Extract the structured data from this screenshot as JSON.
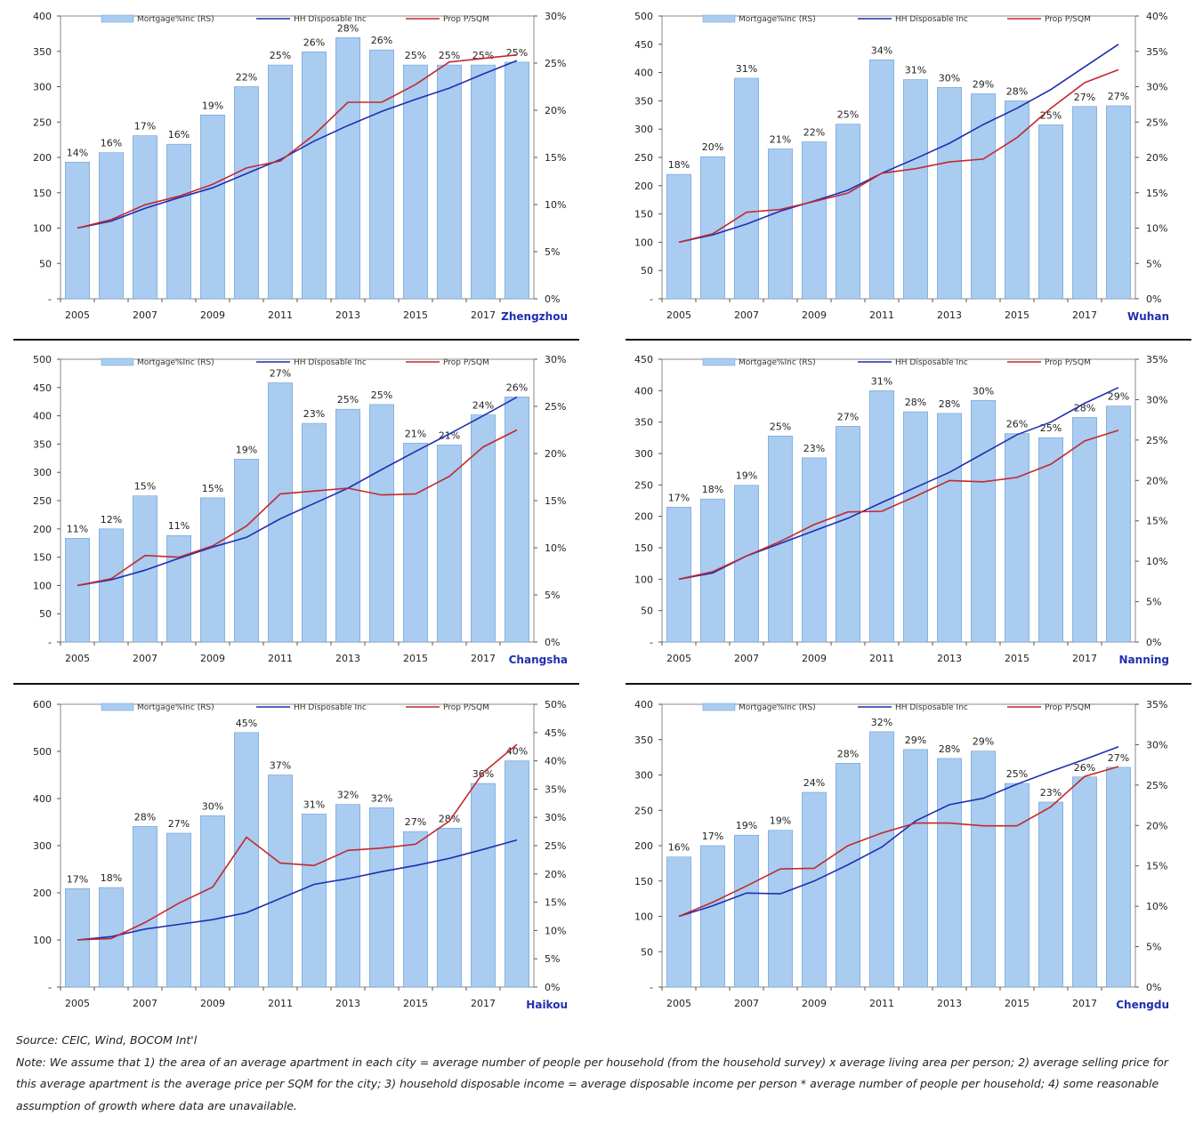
{
  "colors": {
    "bar": "#a9ccf0",
    "bar_edge": "#6f9fd6",
    "hh_line": "#1f2fb0",
    "prop_line": "#c4282e",
    "city_label": "#1f2fb0"
  },
  "legend": {
    "bar": "Mortgage%Inc (RS)",
    "hh": "HH Disposable Inc",
    "prop": "Prop P/SQM"
  },
  "chart_data": [
    {
      "type": "bar",
      "city": "Zhengzhou",
      "x": [
        2005,
        2006,
        2007,
        2008,
        2009,
        2010,
        2011,
        2012,
        2013,
        2014,
        2015,
        2016,
        2017,
        2018
      ],
      "x_ticks": [
        "2005",
        "2007",
        "2009",
        "2011",
        "2013",
        "2015",
        "2017"
      ],
      "left_axis": {
        "ylim": [
          0,
          400
        ],
        "ticks": [
          "-",
          "50",
          "100",
          "150",
          "200",
          "250",
          "300",
          "350",
          "400"
        ]
      },
      "right_axis": {
        "ylim": [
          0,
          30
        ],
        "ticks": [
          "0%",
          "5%",
          "10%",
          "15%",
          "20%",
          "25%",
          "30%"
        ]
      },
      "series": [
        {
          "name": "Mortgage%Inc (RS)",
          "axis": "right",
          "kind": "bar",
          "values": [
            14.5,
            15.5,
            17.3,
            16.4,
            19.5,
            22.5,
            24.8,
            26.2,
            27.7,
            26.4,
            24.8,
            24.8,
            24.8,
            25.1
          ],
          "labels": [
            "14%",
            "16%",
            "17%",
            "16%",
            "19%",
            "22%",
            "25%",
            "26%",
            "28%",
            "26%",
            "25%",
            "25%",
            "25%",
            "25%"
          ]
        },
        {
          "name": "HH Disposable Inc",
          "axis": "left",
          "kind": "line",
          "values": [
            100,
            110,
            128,
            143,
            157,
            177,
            197,
            223,
            245,
            265,
            282,
            298,
            318,
            337
          ]
        },
        {
          "name": "Prop P/SQM",
          "axis": "left",
          "kind": "line",
          "values": [
            100,
            112,
            133,
            145,
            162,
            185,
            195,
            232,
            278,
            278,
            303,
            335,
            340,
            345
          ]
        }
      ]
    },
    {
      "type": "bar",
      "city": "Wuhan",
      "x": [
        2005,
        2006,
        2007,
        2008,
        2009,
        2010,
        2011,
        2012,
        2013,
        2014,
        2015,
        2016,
        2017,
        2018
      ],
      "x_ticks": [
        "2005",
        "2007",
        "2009",
        "2011",
        "2013",
        "2015",
        "2017"
      ],
      "left_axis": {
        "ylim": [
          0,
          500
        ],
        "ticks": [
          "-",
          "50",
          "100",
          "150",
          "200",
          "250",
          "300",
          "350",
          "400",
          "450",
          "500"
        ]
      },
      "right_axis": {
        "ylim": [
          0,
          40
        ],
        "ticks": [
          "0%",
          "5%",
          "10%",
          "15%",
          "20%",
          "25%",
          "30%",
          "35%",
          "40%"
        ]
      },
      "series": [
        {
          "name": "Mortgage%Inc (RS)",
          "axis": "right",
          "kind": "bar",
          "values": [
            17.6,
            20.1,
            31.2,
            21.2,
            22.2,
            24.7,
            33.8,
            31.0,
            29.9,
            29.0,
            28.0,
            24.6,
            27.2,
            27.3
          ],
          "labels": [
            "18%",
            "20%",
            "31%",
            "21%",
            "22%",
            "25%",
            "34%",
            "31%",
            "30%",
            "29%",
            "28%",
            "25%",
            "27%",
            "27%"
          ]
        },
        {
          "name": "HH Disposable Inc",
          "axis": "left",
          "kind": "line",
          "values": [
            100,
            113,
            132,
            155,
            173,
            192,
            222,
            248,
            275,
            308,
            337,
            370,
            410,
            450
          ]
        },
        {
          "name": "Prop P/SQM",
          "axis": "left",
          "kind": "line",
          "values": [
            100,
            115,
            153,
            158,
            172,
            187,
            222,
            230,
            242,
            247,
            285,
            337,
            382,
            405
          ]
        }
      ]
    },
    {
      "type": "bar",
      "city": "Changsha",
      "x": [
        2005,
        2006,
        2007,
        2008,
        2009,
        2010,
        2011,
        2012,
        2013,
        2014,
        2015,
        2016,
        2017,
        2018
      ],
      "x_ticks": [
        "2005",
        "2007",
        "2009",
        "2011",
        "2013",
        "2015",
        "2017"
      ],
      "left_axis": {
        "ylim": [
          0,
          500
        ],
        "ticks": [
          "-",
          "50",
          "100",
          "150",
          "200",
          "250",
          "300",
          "350",
          "400",
          "450",
          "500"
        ]
      },
      "right_axis": {
        "ylim": [
          0,
          30
        ],
        "ticks": [
          "0%",
          "5%",
          "10%",
          "15%",
          "20%",
          "25%",
          "30%"
        ]
      },
      "series": [
        {
          "name": "Mortgage%Inc (RS)",
          "axis": "right",
          "kind": "bar",
          "values": [
            11.0,
            12.0,
            15.5,
            11.3,
            15.3,
            19.4,
            27.5,
            23.2,
            24.7,
            25.2,
            21.1,
            20.9,
            24.1,
            26.0
          ],
          "labels": [
            "11%",
            "12%",
            "15%",
            "11%",
            "15%",
            "19%",
            "27%",
            "23%",
            "25%",
            "25%",
            "21%",
            "21%",
            "24%",
            "26%"
          ]
        },
        {
          "name": "HH Disposable Inc",
          "axis": "left",
          "kind": "line",
          "values": [
            100,
            110,
            127,
            148,
            168,
            185,
            218,
            245,
            272,
            305,
            337,
            368,
            400,
            433
          ]
        },
        {
          "name": "Prop P/SQM",
          "axis": "left",
          "kind": "line",
          "values": [
            100,
            112,
            153,
            150,
            170,
            205,
            262,
            267,
            272,
            260,
            262,
            293,
            345,
            375
          ]
        }
      ]
    },
    {
      "type": "bar",
      "city": "Nanning",
      "x": [
        2005,
        2006,
        2007,
        2008,
        2009,
        2010,
        2011,
        2012,
        2013,
        2014,
        2015,
        2016,
        2017,
        2018
      ],
      "x_ticks": [
        "2005",
        "2007",
        "2009",
        "2011",
        "2013",
        "2015",
        "2017"
      ],
      "left_axis": {
        "ylim": [
          0,
          450
        ],
        "ticks": [
          "-",
          "50",
          "100",
          "150",
          "200",
          "250",
          "300",
          "350",
          "400",
          "450"
        ]
      },
      "right_axis": {
        "ylim": [
          0,
          35
        ],
        "ticks": [
          "0%",
          "5%",
          "10%",
          "15%",
          "20%",
          "25%",
          "30%",
          "35%"
        ]
      },
      "series": [
        {
          "name": "Mortgage%Inc (RS)",
          "axis": "right",
          "kind": "bar",
          "values": [
            16.7,
            17.7,
            19.4,
            25.5,
            22.8,
            26.7,
            31.1,
            28.5,
            28.3,
            29.9,
            25.8,
            25.3,
            27.8,
            29.2
          ],
          "labels": [
            "17%",
            "18%",
            "19%",
            "25%",
            "23%",
            "27%",
            "31%",
            "28%",
            "28%",
            "30%",
            "26%",
            "25%",
            "28%",
            "29%"
          ]
        },
        {
          "name": "HH Disposable Inc",
          "axis": "left",
          "kind": "line",
          "values": [
            100,
            110,
            137,
            157,
            177,
            197,
            222,
            246,
            270,
            300,
            330,
            350,
            380,
            405
          ]
        },
        {
          "name": "Prop P/SQM",
          "axis": "left",
          "kind": "line",
          "values": [
            100,
            112,
            137,
            160,
            187,
            207,
            208,
            232,
            257,
            255,
            262,
            283,
            320,
            337
          ]
        }
      ]
    },
    {
      "type": "bar",
      "city": "Haikou",
      "x": [
        2005,
        2006,
        2007,
        2008,
        2009,
        2010,
        2011,
        2012,
        2013,
        2014,
        2015,
        2016,
        2017,
        2018
      ],
      "x_ticks": [
        "2005",
        "2007",
        "2009",
        "2011",
        "2013",
        "2015",
        "2017"
      ],
      "left_axis": {
        "ylim": [
          0,
          600
        ],
        "ticks": [
          "-",
          "100",
          "200",
          "300",
          "400",
          "500",
          "600"
        ]
      },
      "right_axis": {
        "ylim": [
          0,
          50
        ],
        "ticks": [
          "0%",
          "5%",
          "10%",
          "15%",
          "20%",
          "25%",
          "30%",
          "35%",
          "40%",
          "45%",
          "50%"
        ]
      },
      "series": [
        {
          "name": "Mortgage%Inc (RS)",
          "axis": "right",
          "kind": "bar",
          "values": [
            17.4,
            17.6,
            28.4,
            27.2,
            30.3,
            45.0,
            37.5,
            30.6,
            32.3,
            31.7,
            27.5,
            28.1,
            36.0,
            40.0
          ],
          "labels": [
            "17%",
            "18%",
            "28%",
            "27%",
            "30%",
            "45%",
            "37%",
            "31%",
            "32%",
            "32%",
            "27%",
            "28%",
            "36%",
            "40%"
          ]
        },
        {
          "name": "HH Disposable Inc",
          "axis": "left",
          "kind": "line",
          "values": [
            100,
            107,
            123,
            133,
            143,
            158,
            188,
            218,
            230,
            245,
            258,
            273,
            292,
            312
          ]
        },
        {
          "name": "Prop P/SQM",
          "axis": "left",
          "kind": "line",
          "values": [
            100,
            103,
            137,
            178,
            212,
            318,
            263,
            258,
            290,
            295,
            303,
            352,
            455,
            515
          ]
        }
      ]
    },
    {
      "type": "bar",
      "city": "Chengdu",
      "x": [
        2005,
        2006,
        2007,
        2008,
        2009,
        2010,
        2011,
        2012,
        2013,
        2014,
        2015,
        2016,
        2017,
        2018
      ],
      "x_ticks": [
        "2005",
        "2007",
        "2009",
        "2011",
        "2013",
        "2015",
        "2017"
      ],
      "left_axis": {
        "ylim": [
          0,
          400
        ],
        "ticks": [
          "-",
          "50",
          "100",
          "150",
          "200",
          "250",
          "300",
          "350",
          "400"
        ]
      },
      "right_axis": {
        "ylim": [
          0,
          35
        ],
        "ticks": [
          "0%",
          "5%",
          "10%",
          "15%",
          "20%",
          "25%",
          "30%",
          "35%"
        ]
      },
      "series": [
        {
          "name": "Mortgage%Inc (RS)",
          "axis": "right",
          "kind": "bar",
          "values": [
            16.1,
            17.5,
            18.8,
            19.4,
            24.1,
            27.7,
            31.6,
            29.4,
            28.3,
            29.2,
            25.2,
            22.9,
            26.0,
            27.2
          ],
          "labels": [
            "16%",
            "17%",
            "19%",
            "19%",
            "24%",
            "28%",
            "32%",
            "29%",
            "28%",
            "29%",
            "25%",
            "23%",
            "26%",
            "27%"
          ]
        },
        {
          "name": "HH Disposable Inc",
          "axis": "left",
          "kind": "line",
          "values": [
            100,
            115,
            133,
            132,
            150,
            173,
            198,
            235,
            258,
            267,
            287,
            305,
            322,
            340
          ]
        },
        {
          "name": "Prop P/SQM",
          "axis": "left",
          "kind": "line",
          "values": [
            100,
            120,
            143,
            167,
            168,
            200,
            218,
            232,
            232,
            228,
            228,
            255,
            298,
            312
          ]
        }
      ]
    }
  ],
  "footer": {
    "source": "Source: CEIC, Wind, BOCOM Int'l",
    "note": "Note: We assume that 1) the area of an average apartment in each city = average number of people per household (from the household survey) x average living area per person; 2) average selling price for this average apartment is the average price per SQM for the city; 3) household disposable income = average disposable income per person * average number of people per household; 4) some reasonable assumption of growth where data are unavailable."
  }
}
